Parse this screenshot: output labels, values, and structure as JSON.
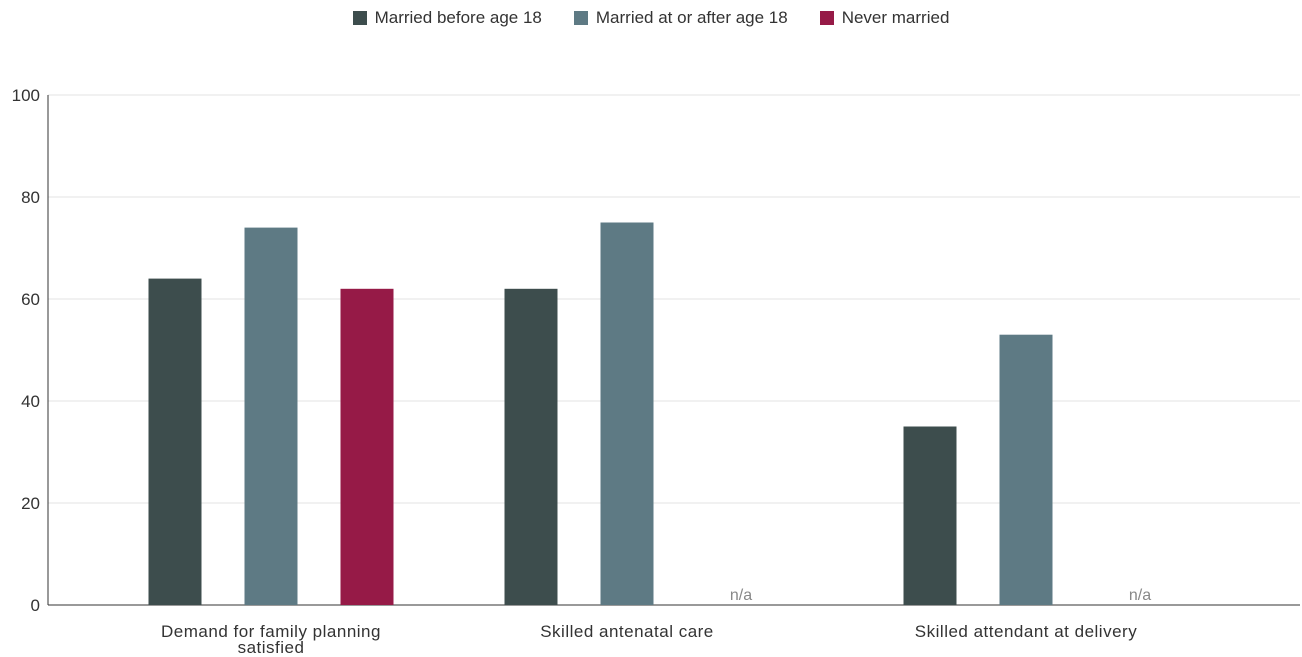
{
  "chart_data": {
    "type": "bar",
    "categories": [
      [
        "Demand for family planning",
        "satisfied"
      ],
      [
        "Skilled antenatal care"
      ],
      [
        "Skilled attendant at delivery"
      ]
    ],
    "series": [
      {
        "name": "Married before age 18",
        "color": "#3d4d4d",
        "values": [
          64,
          62,
          35
        ]
      },
      {
        "name": "Married at or after age 18",
        "color": "#5e7a84",
        "values": [
          74,
          75,
          53
        ]
      },
      {
        "name": "Never married",
        "color": "#961a47",
        "values": [
          62,
          null,
          null
        ]
      }
    ],
    "na_label": "n/a",
    "ylim": [
      0,
      100
    ],
    "yticks": [
      0,
      20,
      40,
      60,
      80,
      100
    ],
    "grid": true,
    "legend_position": "top-center",
    "title": "",
    "xlabel": "",
    "ylabel": ""
  }
}
